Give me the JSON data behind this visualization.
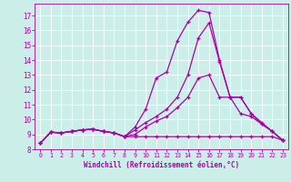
{
  "xlabel": "Windchill (Refroidissement éolien,°C)",
  "bg_color": "#cceee8",
  "line_color": "#aa00aa",
  "xlim": [
    -0.5,
    23.5
  ],
  "ylim": [
    8,
    17.8
  ],
  "yticks": [
    8,
    9,
    10,
    11,
    12,
    13,
    14,
    15,
    16,
    17
  ],
  "xticks": [
    0,
    1,
    2,
    3,
    4,
    5,
    6,
    7,
    8,
    9,
    10,
    11,
    12,
    13,
    14,
    15,
    16,
    17,
    18,
    19,
    20,
    21,
    22,
    23
  ],
  "series": [
    [
      8.4,
      9.15,
      9.1,
      9.2,
      9.3,
      9.35,
      9.2,
      9.1,
      8.85,
      8.85,
      8.85,
      8.85,
      8.85,
      8.85,
      8.85,
      8.85,
      8.85,
      8.85,
      8.85,
      8.85,
      8.85,
      8.85,
      8.85,
      8.6
    ],
    [
      8.4,
      9.15,
      9.1,
      9.2,
      9.3,
      9.35,
      9.2,
      9.1,
      8.85,
      9.0,
      9.5,
      9.9,
      10.2,
      10.8,
      11.5,
      12.8,
      13.0,
      11.5,
      11.5,
      10.4,
      10.2,
      9.7,
      9.2,
      8.6
    ],
    [
      8.4,
      9.15,
      9.1,
      9.2,
      9.3,
      9.35,
      9.2,
      9.1,
      8.85,
      9.3,
      9.8,
      10.2,
      10.7,
      11.5,
      13.0,
      15.5,
      16.5,
      13.9,
      11.5,
      11.5,
      10.4,
      9.7,
      9.2,
      8.6
    ],
    [
      8.4,
      9.15,
      9.1,
      9.2,
      9.3,
      9.35,
      9.2,
      9.1,
      8.85,
      9.5,
      10.7,
      12.8,
      13.2,
      15.3,
      16.55,
      17.35,
      17.2,
      14.0,
      11.5,
      11.5,
      10.4,
      9.8,
      9.2,
      8.6
    ]
  ],
  "marker": "+",
  "markersize": 3.5,
  "linewidth": 0.9
}
